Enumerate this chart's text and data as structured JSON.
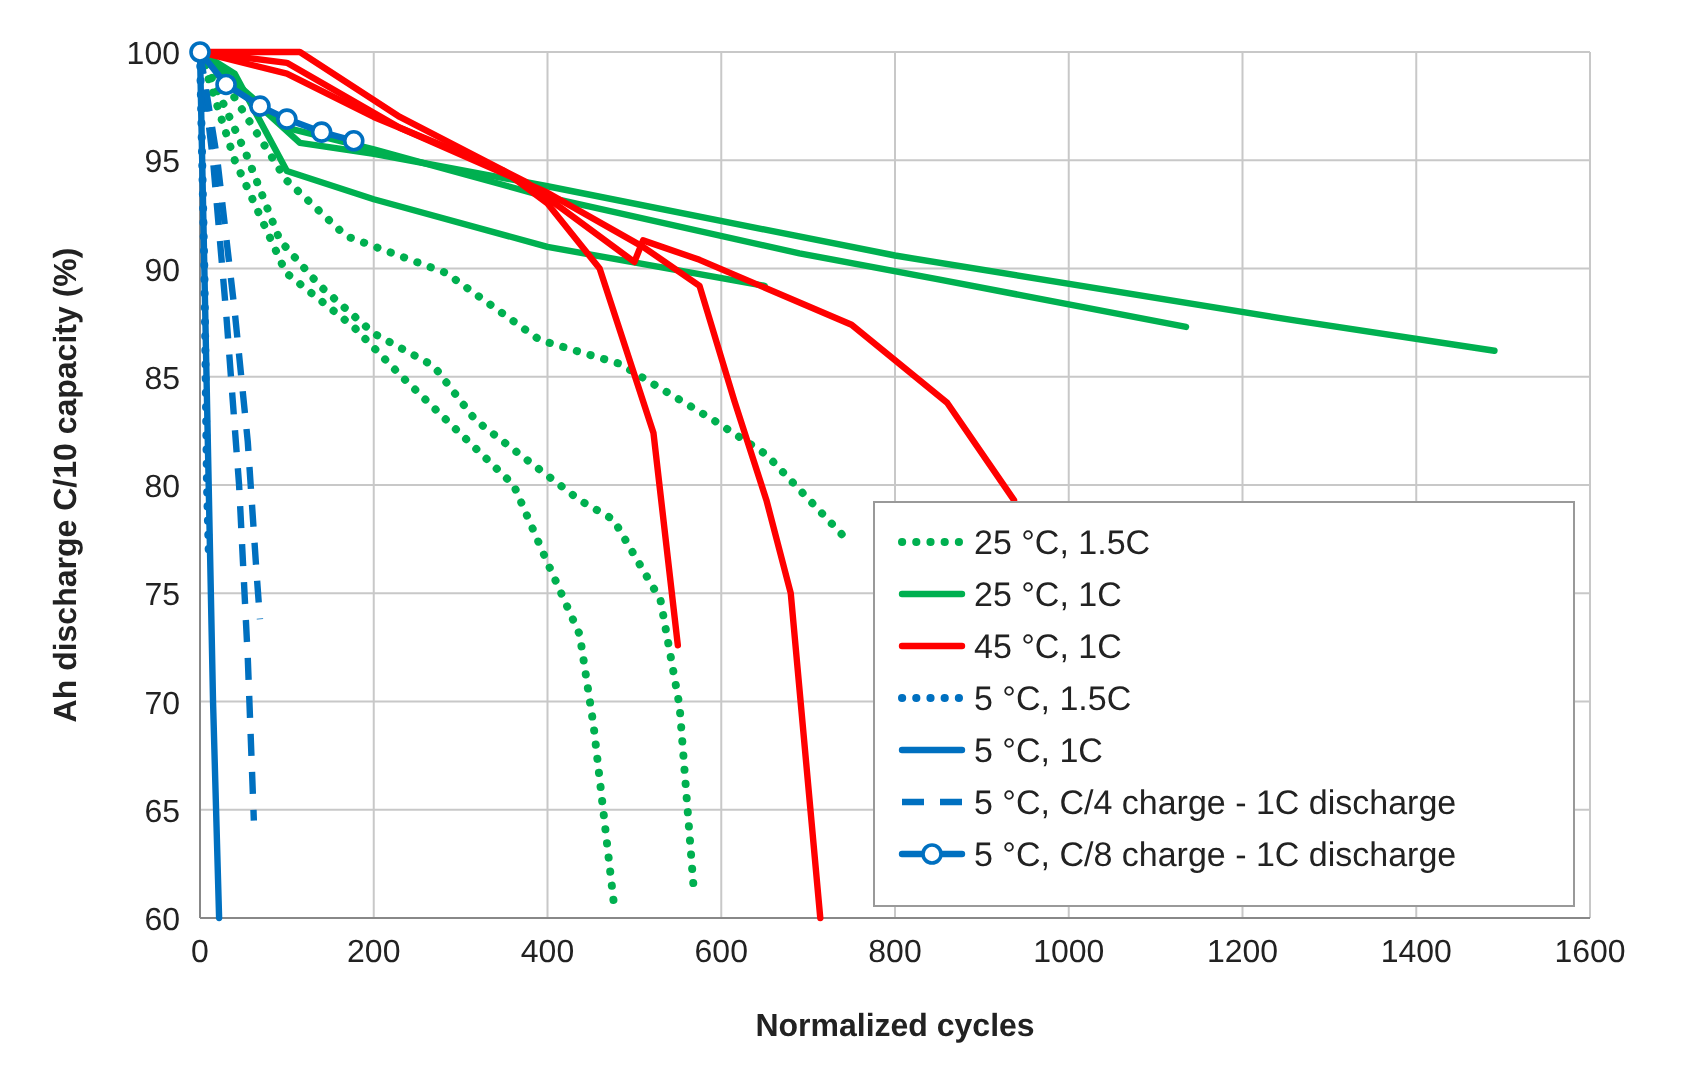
{
  "chart_data": {
    "type": "line",
    "xlabel": "Normalized cycles",
    "ylabel": "Ah discharge C/10 capacity (%)",
    "xlim": [
      0,
      1600
    ],
    "ylim": [
      60,
      100
    ],
    "xticks": [
      0,
      200,
      400,
      600,
      800,
      1000,
      1200,
      1400,
      1600
    ],
    "yticks": [
      60,
      65,
      70,
      75,
      80,
      85,
      90,
      95,
      100
    ],
    "grid": true,
    "legend": "bottom right",
    "series": [
      {
        "name": "25 °C, 1.5C",
        "color": "#00b050",
        "line_style": "dotted",
        "x": [
          0,
          35,
          99,
          168,
          283,
          391,
          483,
          591,
          652,
          744
        ],
        "values": [
          100,
          98.2,
          94.1,
          91.5,
          89.8,
          86.7,
          85.6,
          83,
          81.4,
          77.5
        ]
      },
      {
        "color": "#00b050",
        "line_style": "dotted",
        "x": [
          0,
          53,
          92,
          138,
          200,
          269,
          317,
          375,
          437,
          476,
          530,
          552,
          568
        ],
        "values": [
          100,
          95.3,
          91.3,
          89.2,
          87,
          85.5,
          83,
          81.2,
          79.3,
          78.4,
          74.7,
          69.8,
          61.5
        ]
      },
      {
        "color": "#00b050",
        "line_style": "dotted",
        "x": [
          0,
          40,
          99,
          177,
          230,
          299,
          361,
          399,
          437,
          453,
          476
        ],
        "values": [
          100,
          95,
          89.8,
          87.3,
          85.1,
          82.4,
          80,
          76.5,
          73.1,
          68.9,
          60.8
        ]
      },
      {
        "name": "25 °C, 1C",
        "color": "#00b050",
        "line_style": "solid",
        "x": [
          0,
          115,
          200,
          400,
          800,
          1260,
          1490
        ],
        "values": [
          100,
          95.8,
          95.3,
          93.8,
          90.6,
          87.6,
          86.2
        ]
      },
      {
        "color": "#00b050",
        "line_style": "solid",
        "x": [
          0,
          100,
          200,
          400,
          690,
          850,
          1135
        ],
        "values": [
          100,
          96.5,
          95.5,
          93.3,
          90.7,
          89.5,
          87.3
        ]
      },
      {
        "color": "#00b050",
        "line_style": "solid",
        "x": [
          0,
          40,
          100,
          200,
          400,
          650
        ],
        "values": [
          100,
          99,
          94.5,
          93.2,
          91,
          89.2
        ]
      },
      {
        "name": "45 °C, 1C",
        "color": "#ff0000",
        "line_style": "solid",
        "x": [
          0,
          115,
          230,
          375,
          500,
          510,
          575,
          750,
          860,
          937
        ],
        "values": [
          100,
          100,
          97,
          94,
          90.3,
          91.3,
          90.4,
          87.4,
          83.8,
          79.3
        ]
      },
      {
        "color": "#ff0000",
        "line_style": "solid",
        "x": [
          0,
          100,
          230,
          400,
          510,
          575,
          615,
          652,
          680,
          714
        ],
        "values": [
          100,
          99.5,
          96.5,
          93.5,
          91,
          89.2,
          83.9,
          79.3,
          75,
          60
        ]
      },
      {
        "color": "#ff0000",
        "line_style": "solid",
        "x": [
          0,
          100,
          200,
          350,
          400,
          460,
          522,
          550
        ],
        "values": [
          100,
          99,
          97,
          94.5,
          93,
          90,
          82.4,
          72.6
        ]
      },
      {
        "name": "5 °C, 1.5C",
        "color": "#0070c0",
        "line_style": "dotted",
        "x": [
          0,
          5,
          8,
          10
        ],
        "values": [
          100,
          90,
          80,
          77
        ]
      },
      {
        "name": "5 °C, 1C",
        "color": "#0070c0",
        "line_style": "solid",
        "x": [
          0,
          5,
          10,
          15,
          22
        ],
        "values": [
          100,
          90,
          80,
          70,
          60
        ]
      },
      {
        "name": "5 °C, C/4 charge - 1C discharge",
        "color": "#0070c0",
        "line_style": "dashed",
        "x": [
          0,
          15,
          30,
          45,
          55,
          62
        ],
        "values": [
          100,
          95,
          88,
          80,
          72,
          64.5
        ]
      },
      {
        "color": "#0070c0",
        "line_style": "dashed",
        "x": [
          0,
          20,
          40,
          55,
          65,
          69
        ],
        "values": [
          100,
          95,
          88,
          82,
          76,
          73.8
        ]
      },
      {
        "name": "5 °C, C/8 charge - 1C discharge",
        "color": "#0070c0",
        "line_style": "solid",
        "marker": "circle",
        "x": [
          0,
          30,
          69,
          100,
          140,
          177
        ],
        "values": [
          100,
          98.5,
          97.5,
          96.9,
          96.3,
          95.9
        ]
      }
    ]
  }
}
